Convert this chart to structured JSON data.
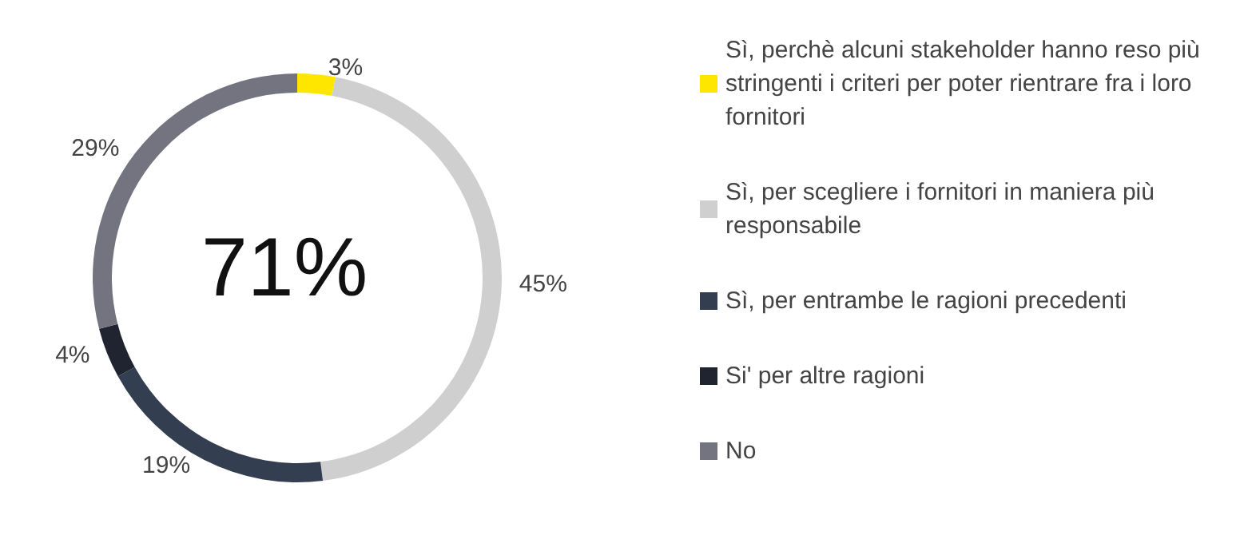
{
  "chart_data": {
    "type": "donut",
    "categories": [
      "Sì, perchè alcuni stakeholder hanno reso più stringenti i criteri per poter rientrare fra i loro fornitori",
      "Sì, per scegliere i fornitori in maniera più responsabile",
      "Sì, per entrambe le ragioni precedenti",
      "Si' per altre ragioni",
      "No"
    ],
    "values": [
      3,
      45,
      19,
      4,
      29
    ],
    "value_labels": [
      "3%",
      "45%",
      "19%",
      "4%",
      "29%"
    ],
    "colors": [
      "#ffe600",
      "#d0cfcf",
      "#333f50",
      "#1f2430",
      "#747480"
    ],
    "annotations": [
      "71%"
    ],
    "legend": "right"
  }
}
